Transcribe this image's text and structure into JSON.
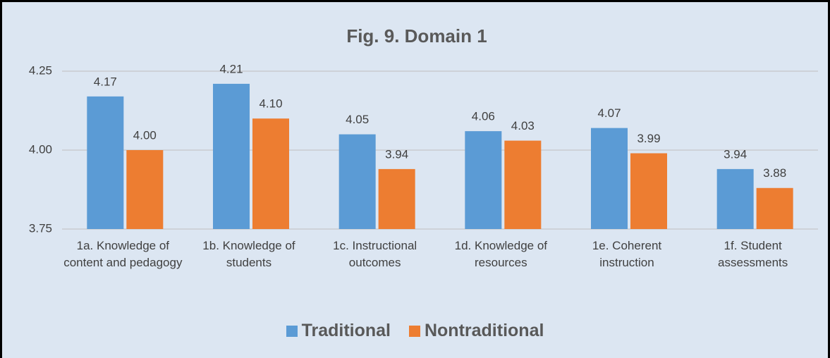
{
  "chart_data": {
    "type": "bar",
    "title": "Fig. 9.  Domain 1",
    "categories": [
      "1a. Knowledge of content and pedagogy",
      "1b. Knowledge of students",
      "1c. Instructional outcomes",
      "1d. Knowledge of resources",
      "1e. Coherent instruction",
      "1f. Student assessments"
    ],
    "series": [
      {
        "name": "Traditional",
        "color": "#5b9bd5",
        "values": [
          4.17,
          4.21,
          4.05,
          4.06,
          4.07,
          3.94
        ],
        "value_labels": [
          "4.17",
          "4.21",
          "4.05",
          "4.06",
          "4.07",
          "3.94"
        ]
      },
      {
        "name": "Nontraditional",
        "color": "#ed7d31",
        "values": [
          4.0,
          4.1,
          3.94,
          4.03,
          3.99,
          3.88
        ],
        "value_labels": [
          "4.00",
          "4.10",
          "3.94",
          "4.03",
          "3.99",
          "3.88"
        ]
      }
    ],
    "ylim": [
      3.75,
      4.25
    ],
    "yticks": [
      4.25,
      {
        "value": 4,
        "label": "4.00"
      },
      3.75
    ],
    "grid": true,
    "legend": "bottom"
  }
}
